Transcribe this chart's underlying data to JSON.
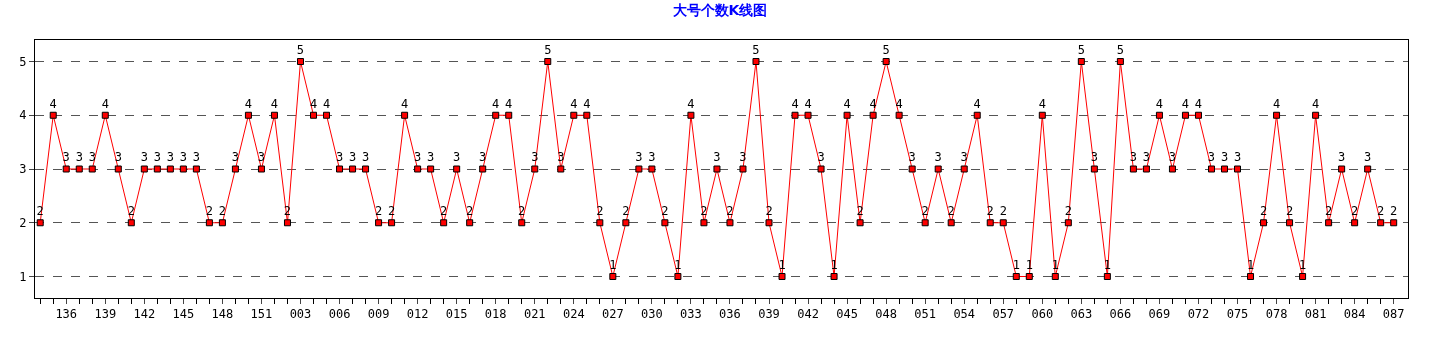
{
  "chart_data": {
    "type": "line",
    "title": "大号个数K线图",
    "categories": [
      null,
      null,
      "136",
      null,
      null,
      "139",
      null,
      null,
      "142",
      null,
      null,
      "145",
      null,
      null,
      "148",
      null,
      null,
      "151",
      null,
      null,
      "003",
      null,
      null,
      "006",
      null,
      null,
      "009",
      null,
      null,
      "012",
      null,
      null,
      "015",
      null,
      null,
      "018",
      null,
      null,
      "021",
      null,
      null,
      "024",
      null,
      null,
      "027",
      null,
      null,
      "030",
      null,
      null,
      "033",
      null,
      null,
      "036",
      null,
      null,
      "039",
      null,
      null,
      "042",
      null,
      null,
      "045",
      null,
      null,
      "048",
      null,
      null,
      "051",
      null,
      null,
      "054",
      null,
      null,
      "057",
      null,
      null,
      "060",
      null,
      null,
      "063",
      null,
      null,
      "066",
      null,
      null,
      "069",
      null,
      null,
      "072",
      null,
      null,
      "075",
      null,
      null,
      "078",
      null,
      null,
      "081",
      null,
      null,
      "084",
      null,
      null,
      "087"
    ],
    "series": [
      {
        "color": "#ff0000",
        "values": [
          2,
          4,
          3,
          3,
          3,
          4,
          3,
          2,
          3,
          3,
          3,
          3,
          3,
          2,
          2,
          3,
          4,
          3,
          4,
          2,
          5,
          4,
          4,
          3,
          3,
          3,
          2,
          2,
          4,
          3,
          3,
          2,
          3,
          2,
          3,
          4,
          4,
          2,
          3,
          5,
          3,
          4,
          4,
          2,
          1,
          2,
          3,
          3,
          2,
          1,
          4,
          2,
          3,
          2,
          3,
          5,
          2,
          1,
          4,
          4,
          3,
          1,
          4,
          2,
          4,
          5,
          4,
          3,
          2,
          3,
          2,
          3,
          4,
          2,
          2,
          1,
          1,
          4,
          1,
          2,
          5,
          3,
          1,
          5,
          3,
          3,
          4,
          3,
          4,
          4,
          3,
          3,
          3,
          1,
          2,
          4,
          2,
          1,
          4,
          2,
          3,
          2,
          3,
          2,
          2
        ]
      }
    ],
    "ylim": [
      0.6,
      5.4
    ],
    "yticks": [
      1,
      2,
      3,
      4,
      5
    ],
    "grid": "y",
    "marker": "square",
    "line_style": "solid",
    "data_labels": true,
    "legend": false
  }
}
